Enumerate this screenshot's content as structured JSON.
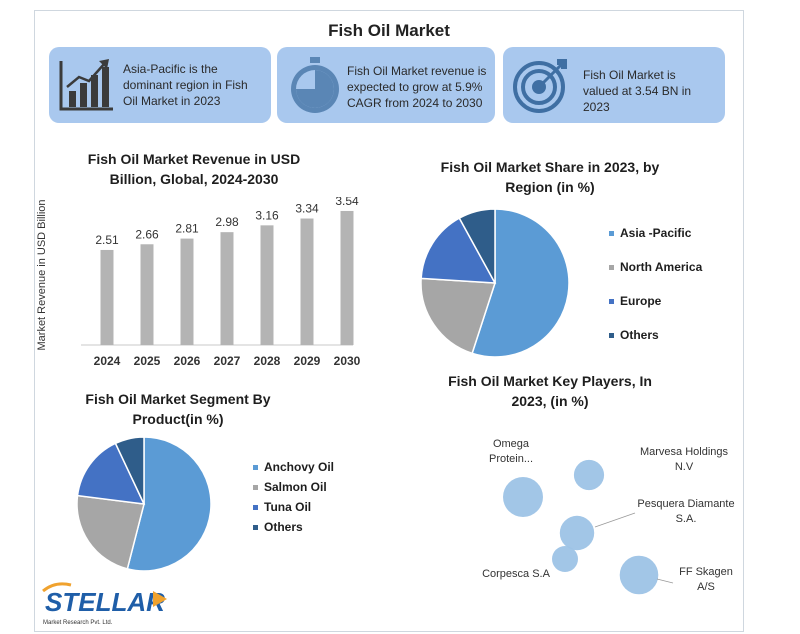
{
  "title": "Fish Oil Market",
  "cards": [
    {
      "icon": "bar-chart-icon",
      "text": "Asia-Pacific is the dominant region in Fish Oil Market in 2023"
    },
    {
      "icon": "stopwatch-icon",
      "text": "Fish Oil Market revenue is expected to grow at 5.9% CAGR from 2024 to 2030"
    },
    {
      "icon": "target-icon",
      "text": "Fish Oil Market is valued at 3.54 BN in 2023"
    }
  ],
  "colors": {
    "card_bg": "#a9c8ee",
    "bar": "#b4b4b4",
    "blue": "#5b9bd5",
    "gray": "#a6a6a6",
    "mid_blue": "#4472c4",
    "dark_blue": "#2f5d8a",
    "bubble": "#9dc3e6"
  },
  "chart_data": [
    {
      "type": "bar",
      "title": "Fish Oil Market Revenue in USD Billion, Global, 2024-2030",
      "categories": [
        "2024",
        "2025",
        "2026",
        "2027",
        "2028",
        "2029",
        "2030"
      ],
      "values": [
        2.51,
        2.66,
        2.81,
        2.98,
        3.16,
        3.34,
        3.54
      ],
      "xlabel": "",
      "ylabel": "Market Revenue in USD Billion",
      "ylim": [
        0,
        3.75
      ],
      "grid": false
    },
    {
      "type": "pie",
      "title": "Fish Oil Market Share in 2023, by Region (in %)",
      "labels": [
        "Asia -Pacific",
        "North America",
        "Europe",
        "Others"
      ],
      "values": [
        55,
        21,
        16,
        8
      ],
      "legend": "right"
    },
    {
      "type": "pie",
      "title": "Fish Oil Market Segment By Product(in %)",
      "labels": [
        "Anchovy Oil",
        "Salmon Oil",
        "Tuna Oil",
        "Others"
      ],
      "values": [
        54,
        23,
        16,
        7
      ],
      "legend": "right"
    },
    {
      "type": "scatter",
      "title": "Fish Oil Market Key Players, In 2023, (in %)",
      "points": [
        {
          "label": "Omega Protein...",
          "value": 20
        },
        {
          "label": "Marvesa Holdings N.V",
          "value": 13
        },
        {
          "label": "Pesquera Diamante S.A.",
          "value": 16
        },
        {
          "label": "Corpesca S.A",
          "value": 10
        },
        {
          "label": "FF Skagen A/S",
          "value": 19
        }
      ]
    }
  ],
  "logo": {
    "brand": "STELLAR",
    "subtitle": "Market Research Pvt. Ltd."
  }
}
